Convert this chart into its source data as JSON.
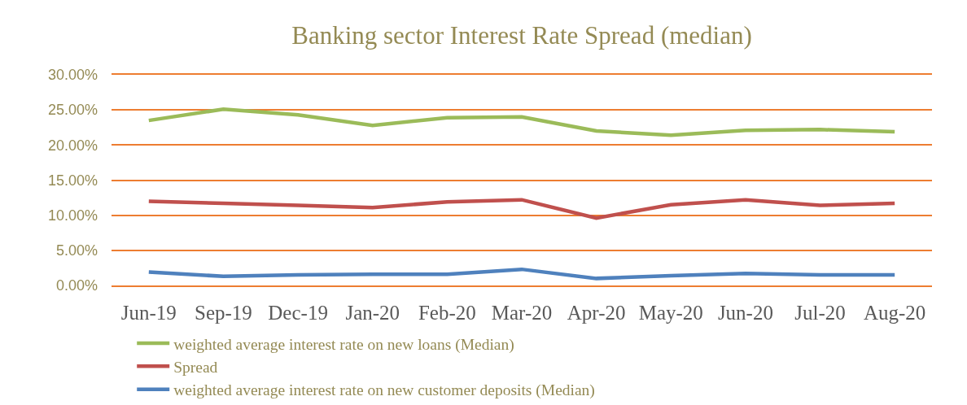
{
  "chart_data": {
    "type": "line",
    "title": "Banking sector Interest Rate Spread (median)",
    "categories": [
      "Jun-19",
      "Sep-19",
      "Dec-19",
      "Jan-20",
      "Feb-20",
      "Mar-20",
      "Apr-20",
      "May-20",
      "Jun-20",
      "Jul-20",
      "Aug-20"
    ],
    "series": [
      {
        "name": "weighted average interest rate on new loans (Median)",
        "color": "#9bbb59",
        "values": [
          23.5,
          25.1,
          24.3,
          22.8,
          23.9,
          24.0,
          22.0,
          21.4,
          22.1,
          22.2,
          21.9
        ]
      },
      {
        "name": "Spread",
        "color": "#c0504d",
        "values": [
          12.0,
          11.7,
          11.4,
          11.1,
          11.9,
          12.2,
          9.6,
          11.5,
          12.2,
          11.4,
          11.7
        ]
      },
      {
        "name": "weighted average interest rate on new customer deposits (Median)",
        "color": "#4f81bd",
        "values": [
          1.9,
          1.3,
          1.5,
          1.6,
          1.6,
          2.3,
          1.0,
          1.4,
          1.7,
          1.5,
          1.5
        ]
      }
    ],
    "ylim": [
      0,
      30
    ],
    "yticks": [
      {
        "value": 0,
        "label": "0.00%"
      },
      {
        "value": 5,
        "label": "5.00%"
      },
      {
        "value": 10,
        "label": "10.00%"
      },
      {
        "value": 15,
        "label": "15.00%"
      },
      {
        "value": 20,
        "label": "20.00%"
      },
      {
        "value": 25,
        "label": "25.00%"
      },
      {
        "value": 30,
        "label": "30.00%"
      }
    ],
    "grid": "y",
    "legend": "bottom left",
    "marker": "none",
    "line_style": "solid"
  }
}
